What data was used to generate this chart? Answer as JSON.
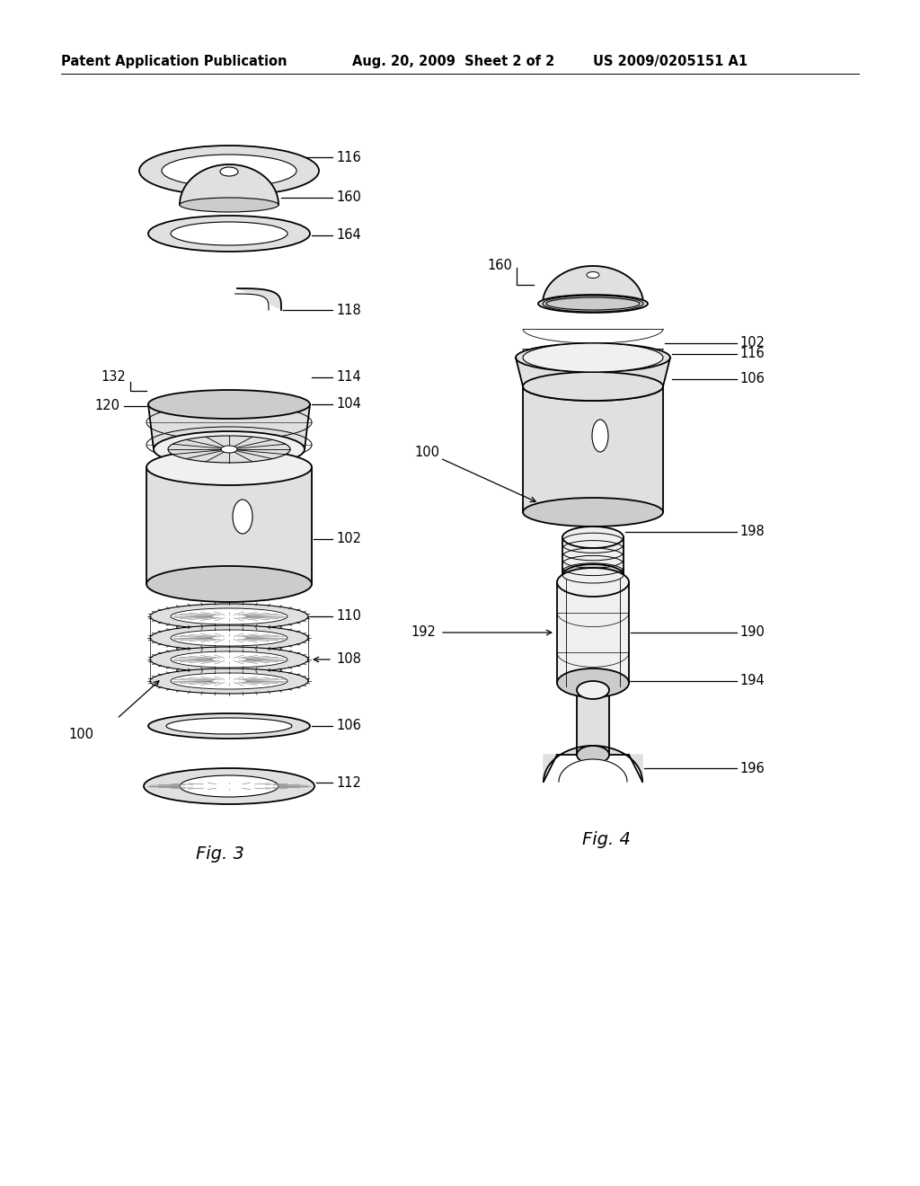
{
  "background_color": "#ffffff",
  "header_left": "Patent Application Publication",
  "header_mid": "Aug. 20, 2009  Sheet 2 of 2",
  "header_right": "US 2009/0205151 A1",
  "header_fontsize": 10.5,
  "fig3_label": "Fig. 3",
  "fig4_label": "Fig. 4"
}
